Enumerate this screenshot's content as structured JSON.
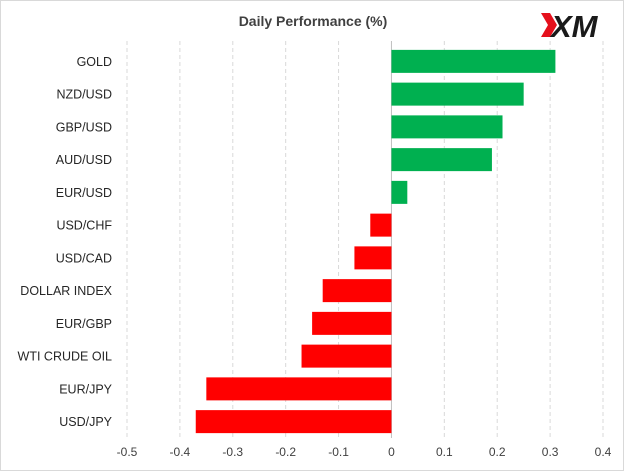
{
  "chart_data": {
    "type": "bar",
    "orientation": "horizontal",
    "title": "Daily Performance (%)",
    "categories": [
      "GOLD",
      "NZD/USD",
      "GBP/USD",
      "AUD/USD",
      "EUR/USD",
      "USD/CHF",
      "USD/CAD",
      "DOLLAR INDEX",
      "EUR/GBP",
      "WTI CRUDE OIL",
      "EUR/JPY",
      "USD/JPY"
    ],
    "values": [
      0.31,
      0.25,
      0.21,
      0.19,
      0.03,
      -0.04,
      -0.07,
      -0.13,
      -0.15,
      -0.17,
      -0.35,
      -0.37
    ],
    "xlim": [
      -0.5,
      0.4
    ],
    "xticks": [
      "-0.5",
      "-0.4",
      "-0.3",
      "-0.2",
      "-0.1",
      "0",
      "0.1",
      "0.2",
      "0.3",
      "0.4"
    ],
    "xlabel": "",
    "ylabel": "",
    "grid": "vertical dashed",
    "colors": {
      "positive": "#00b050",
      "negative": "#ff0000",
      "logo_accent": "#e5101c"
    }
  },
  "logo": {
    "text": "XM"
  }
}
